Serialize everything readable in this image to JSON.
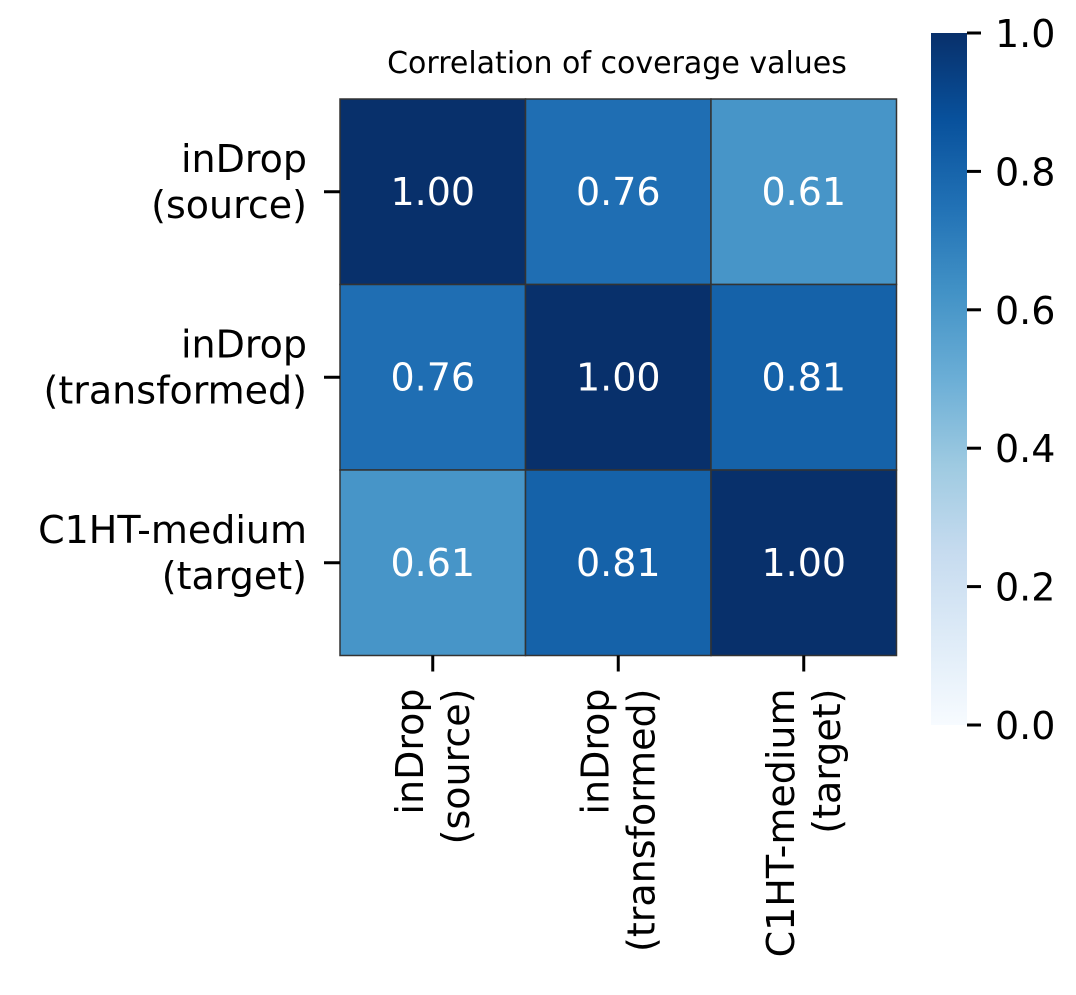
{
  "chart_data": {
    "type": "heatmap",
    "title": "Correlation of coverage values",
    "row_labels": [
      [
        "inDrop",
        "(source)"
      ],
      [
        "inDrop",
        "(transformed)"
      ],
      [
        "C1HT-medium",
        "(target)"
      ]
    ],
    "col_labels": [
      [
        "inDrop",
        "(source)"
      ],
      [
        "inDrop",
        "(transformed)"
      ],
      [
        "C1HT-medium",
        "(target)"
      ]
    ],
    "values": [
      [
        1.0,
        0.76,
        0.61
      ],
      [
        0.76,
        1.0,
        0.81
      ],
      [
        0.61,
        0.81,
        1.0
      ]
    ],
    "annotations": [
      [
        "1.00",
        "0.76",
        "0.61"
      ],
      [
        "0.76",
        "1.00",
        "0.81"
      ],
      [
        "0.61",
        "0.81",
        "1.00"
      ]
    ],
    "colormap": "Blues",
    "vmin": 0.0,
    "vmax": 1.0,
    "colorbar_ticks": [
      "0.0",
      "0.2",
      "0.4",
      "0.6",
      "0.8",
      "1.0"
    ],
    "grid_line_color": "#333333",
    "annotation_color": "#ffffff"
  }
}
